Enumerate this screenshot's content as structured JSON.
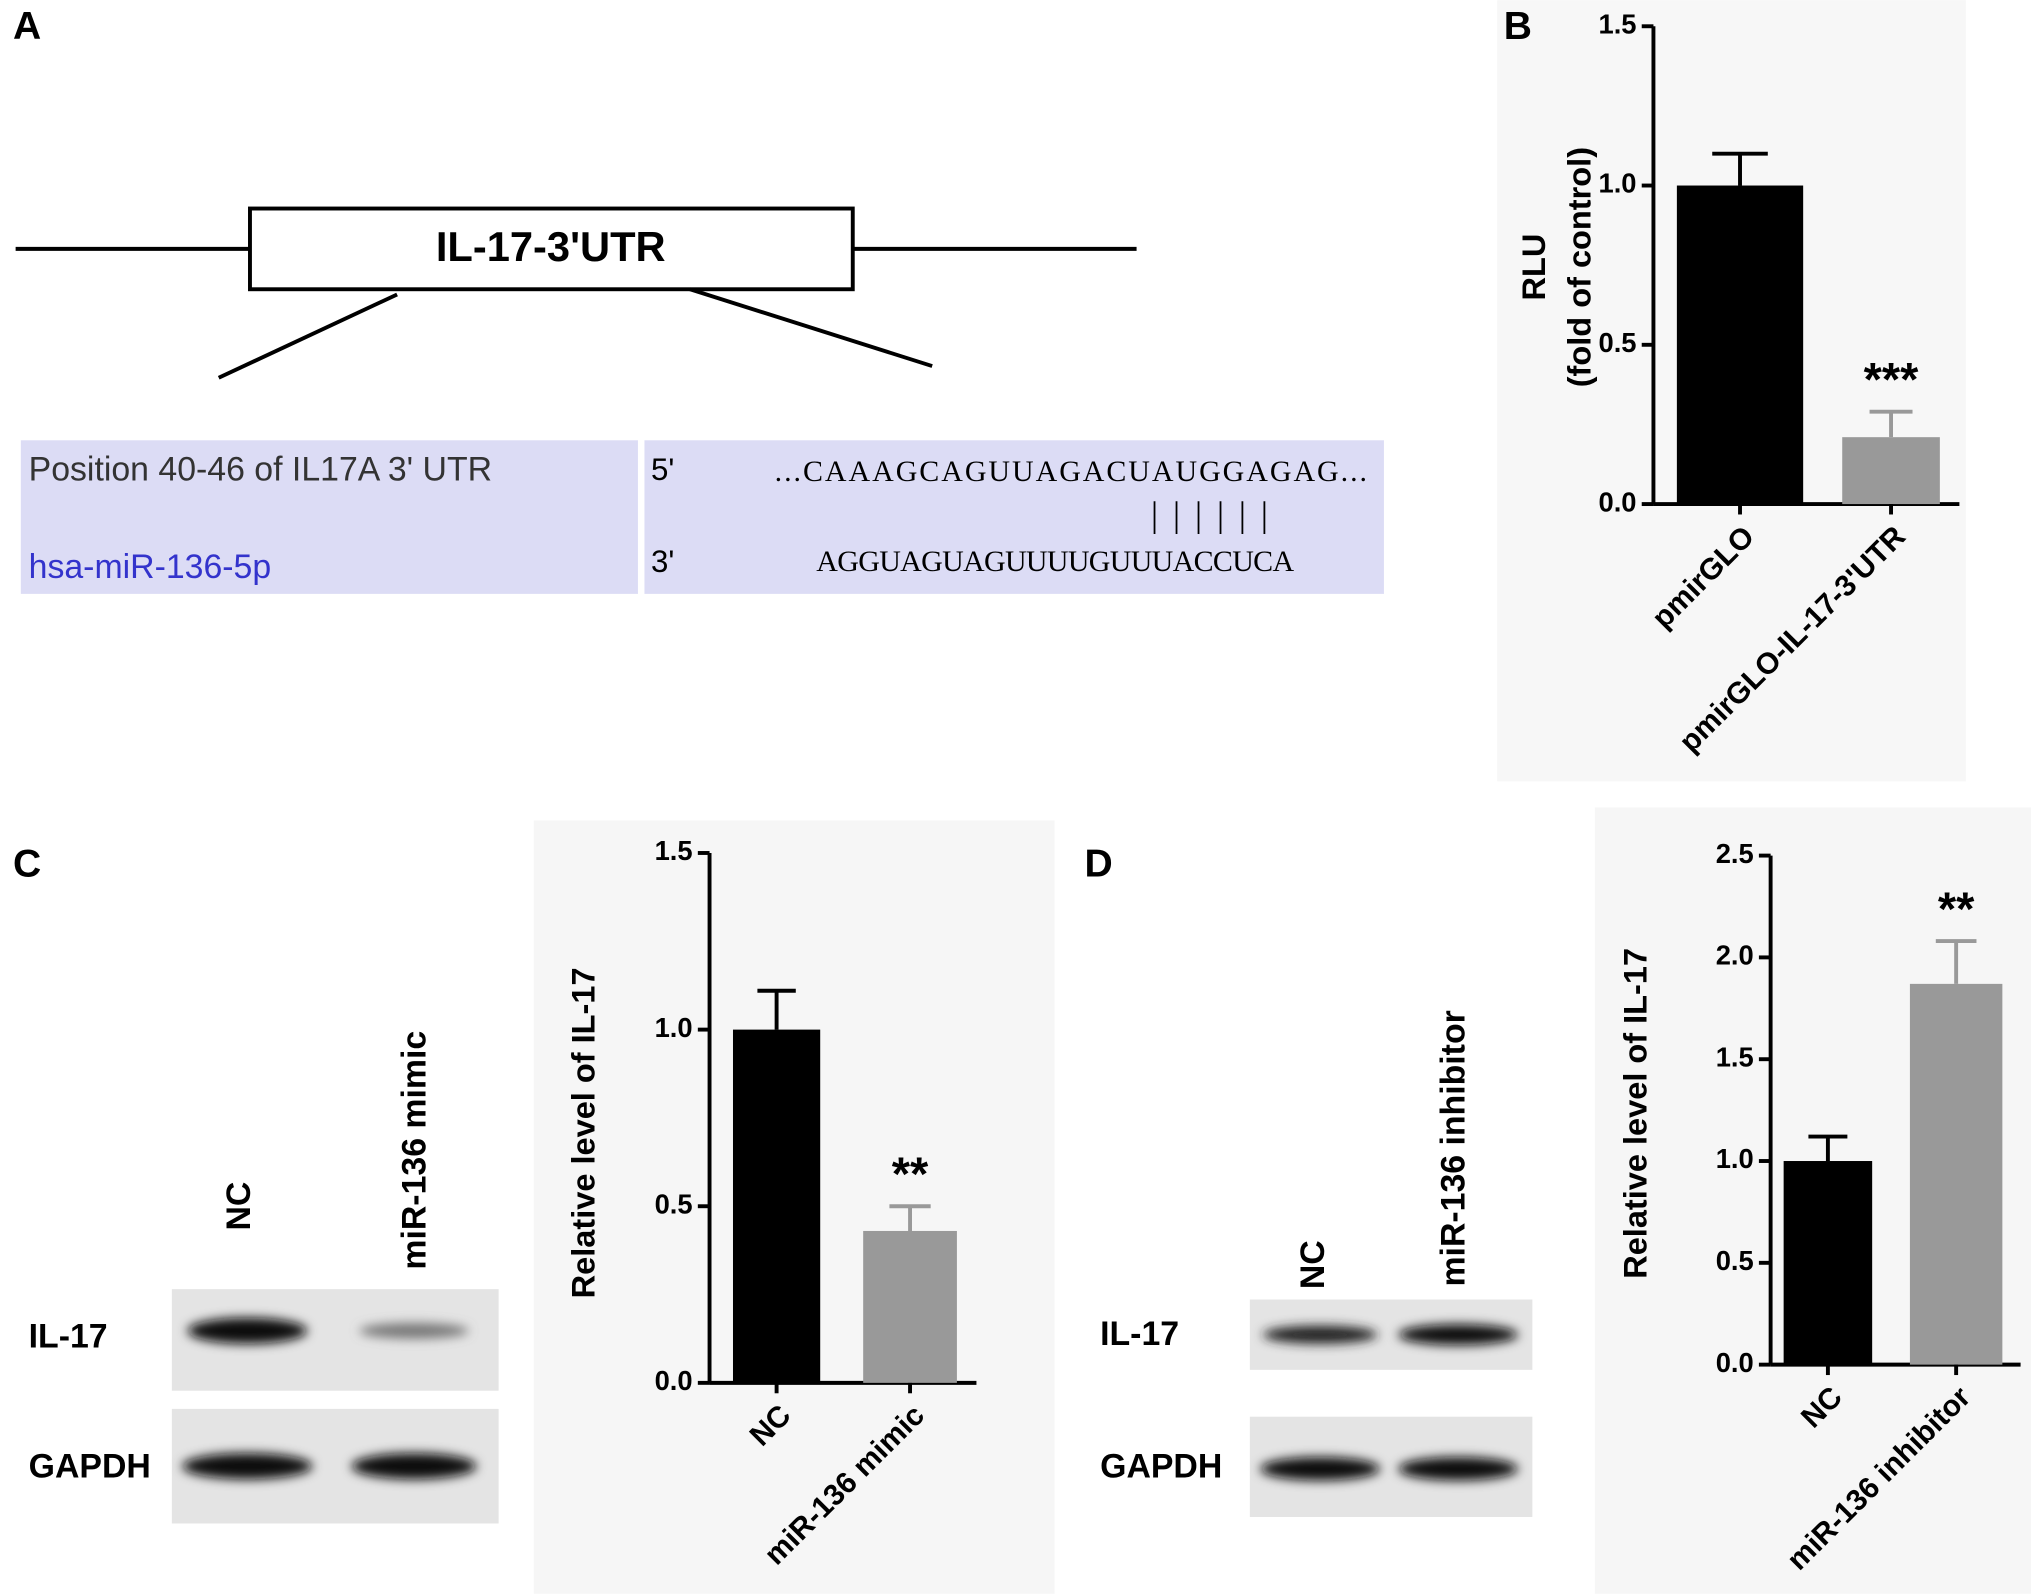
{
  "panels": [
    "A",
    "B",
    "C",
    "D"
  ],
  "diagram": {
    "label": "IL-17-3'UTR",
    "alignment": {
      "target_name": "Position 40-46 of IL17A 3' UTR",
      "target_end": "5'",
      "target_seq": "...CAAAGCAGUUAGACUAUGGAGAG...",
      "pairing": "||||||",
      "mirna_name": "hsa-miR-136-5p",
      "mirna_end": "3'",
      "mirna_seq": "AGGUAGUAGUUUUGUUUACCUCA"
    }
  },
  "blots": [
    {
      "lanes": [
        "NC",
        "miR-136 mimic"
      ],
      "rows": [
        "IL-17",
        "GAPDH"
      ]
    },
    {
      "lanes": [
        "NC",
        "miR-136 inhibitor"
      ],
      "rows": [
        "IL-17",
        "GAPDH"
      ]
    }
  ],
  "chart_data": [
    {
      "type": "bar",
      "y_label": [
        "RLU",
        "(fold of control)"
      ],
      "categories": [
        "pmirGLO",
        "pmirGLO-IL-17-3'UTR"
      ],
      "values": [
        1.0,
        0.21
      ],
      "errors": [
        0.1,
        0.08
      ],
      "colors": [
        "#000000",
        "#999999"
      ],
      "ylim": [
        0,
        1.5
      ],
      "yticks": [
        {
          "value": 0,
          "label": "0.0"
        },
        {
          "value": 0.5,
          "label": "0.5"
        },
        {
          "value": 1,
          "label": "1.0"
        },
        {
          "value": 1.5,
          "label": "1.5"
        }
      ],
      "annotations": [
        {
          "text": "***",
          "x": "pmirGLO-IL-17-3'UTR"
        }
      ]
    },
    {
      "type": "bar",
      "y_label": [
        "Relative level of IL-17"
      ],
      "categories": [
        "NC",
        "miR-136 mimic"
      ],
      "values": [
        1.0,
        0.43
      ],
      "errors": [
        0.11,
        0.07
      ],
      "colors": [
        "#000000",
        "#999999"
      ],
      "ylim": [
        0,
        1.5
      ],
      "yticks": [
        {
          "value": 0,
          "label": "0.0"
        },
        {
          "value": 0.5,
          "label": "0.5"
        },
        {
          "value": 1,
          "label": "1.0"
        },
        {
          "value": 1.5,
          "label": "1.5"
        }
      ],
      "annotations": [
        {
          "text": "**",
          "x": "miR-136 mimic"
        }
      ]
    },
    {
      "type": "bar",
      "y_label": [
        "Relative level of IL-17"
      ],
      "categories": [
        "NC",
        "miR-136 inhibitor"
      ],
      "values": [
        1.0,
        1.87
      ],
      "errors": [
        0.12,
        0.21
      ],
      "colors": [
        "#000000",
        "#999999"
      ],
      "ylim": [
        0,
        2.5
      ],
      "yticks": [
        {
          "value": 0,
          "label": "0.0"
        },
        {
          "value": 0.5,
          "label": "0.5"
        },
        {
          "value": 1,
          "label": "1.0"
        },
        {
          "value": 1.5,
          "label": "1.5"
        },
        {
          "value": 2,
          "label": "2.0"
        },
        {
          "value": 2.5,
          "label": "2.5"
        }
      ],
      "annotations": [
        {
          "text": "**",
          "x": "miR-136 inhibitor"
        }
      ]
    }
  ]
}
